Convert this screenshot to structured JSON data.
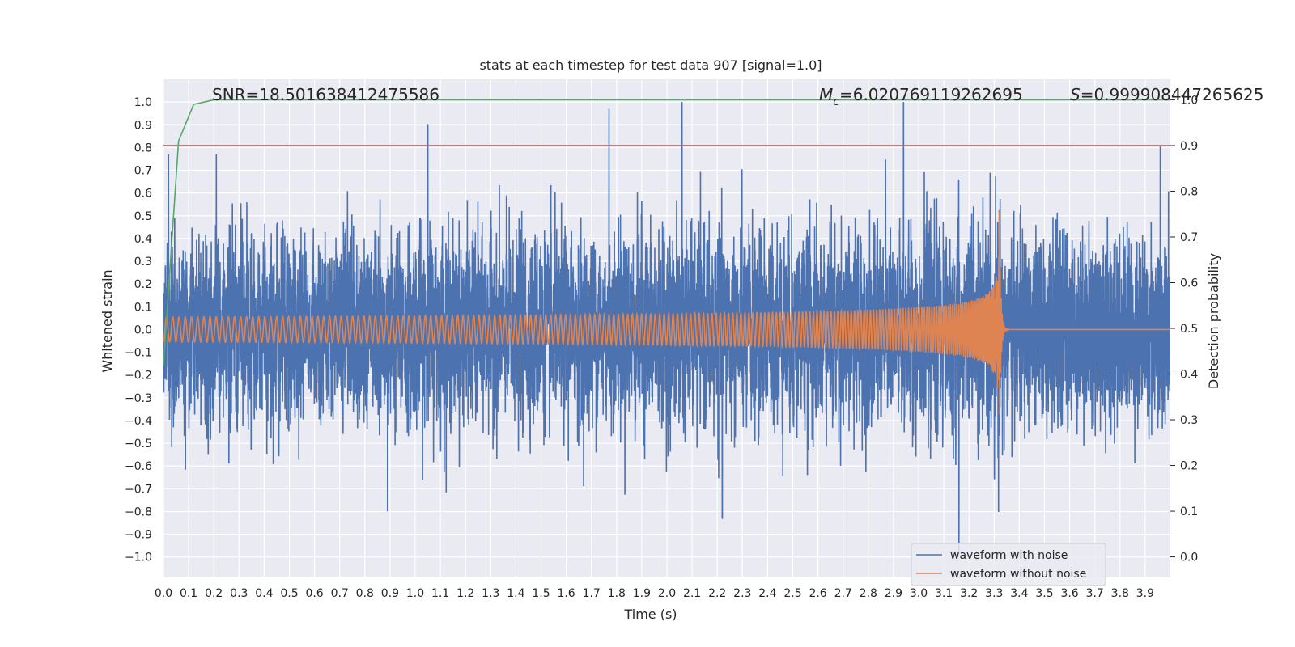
{
  "chart_data": {
    "type": "line",
    "title": "stats at each timestep for test data 907 [signal=1.0]",
    "xlabel": "Time (s)",
    "ylabel": "Whitened strain",
    "y2label": "Detection probability",
    "xlim": [
      0.0,
      4.0
    ],
    "ylim": [
      -1.09,
      1.1
    ],
    "y2lim": [
      -0.045,
      1.045
    ],
    "grid": true,
    "x_ticks": [
      0.0,
      0.1,
      0.2,
      0.3,
      0.4,
      0.5,
      0.6,
      0.7,
      0.8,
      0.9,
      1.0,
      1.1,
      1.2,
      1.3,
      1.4,
      1.5,
      1.6,
      1.7,
      1.8,
      1.9,
      2.0,
      2.1,
      2.2,
      2.3,
      2.4,
      2.5,
      2.6,
      2.7,
      2.8,
      2.9,
      3.0,
      3.1,
      3.2,
      3.3,
      3.4,
      3.5,
      3.6,
      3.7,
      3.8,
      3.9
    ],
    "x_tick_labels": [
      "0.0",
      "0.1",
      "0.2",
      "0.3",
      "0.4",
      "0.5",
      "0.6",
      "0.7",
      "0.8",
      "0.9",
      "1.0",
      "1.1",
      "1.2",
      "1.3",
      "1.4",
      "1.5",
      "1.6",
      "1.7",
      "1.8",
      "1.9",
      "2.0",
      "2.1",
      "2.2",
      "2.3",
      "2.4",
      "2.5",
      "2.6",
      "2.7",
      "2.8",
      "2.9",
      "3.0",
      "3.1",
      "3.2",
      "3.3",
      "3.4",
      "3.5",
      "3.6",
      "3.7",
      "3.8",
      "3.9"
    ],
    "y_ticks": [
      1.0,
      0.9,
      0.8,
      0.7,
      0.6,
      0.5,
      0.4,
      0.3,
      0.2,
      0.1,
      0.0,
      -0.1,
      -0.2,
      -0.3,
      -0.4,
      -0.5,
      -0.6,
      -0.7,
      -0.8,
      -0.9,
      -1.0
    ],
    "y_tick_labels": [
      "1.0",
      "0.9",
      "0.8",
      "0.7",
      "0.6",
      "0.5",
      "0.4",
      "0.3",
      "0.2",
      "0.1",
      "0.0",
      "−0.1",
      "−0.2",
      "−0.3",
      "−0.4",
      "−0.5",
      "−0.6",
      "−0.7",
      "−0.8",
      "−0.9",
      "−1.0"
    ],
    "y2_ticks": [
      1.0,
      0.9,
      0.8,
      0.7,
      0.6,
      0.5,
      0.4,
      0.3,
      0.2,
      0.1,
      0.0
    ],
    "y2_tick_labels": [
      "1.0",
      "0.9",
      "0.8",
      "0.7",
      "0.6",
      "0.5",
      "0.4",
      "0.3",
      "0.2",
      "0.1",
      "0.0"
    ],
    "annotations": {
      "snr": "SNR=18.501638412475586",
      "mc_symbol": "M",
      "mc_sub": "c",
      "mc_value": "=6.020769119262695",
      "s_symbol": "S",
      "s_value": "=0.999908447265625"
    },
    "threshold": {
      "axis": "right",
      "value": 0.9,
      "color": "#c44e52"
    },
    "series": [
      {
        "name": "waveform with noise",
        "color": "#4c72b0",
        "axis": "left",
        "sample_rate": 2048,
        "noise_std": 0.2,
        "notable_peaks": [
          {
            "t": 0.02,
            "y": 0.77
          },
          {
            "t": 0.21,
            "y": 0.77
          },
          {
            "t": 1.05,
            "y": 0.9
          },
          {
            "t": 1.77,
            "y": 0.97
          },
          {
            "t": 2.06,
            "y": 1.0
          },
          {
            "t": 2.94,
            "y": 1.0
          },
          {
            "t": 3.16,
            "y": -0.98
          },
          {
            "t": 3.96,
            "y": 0.81
          },
          {
            "t": 2.22,
            "y": -0.83
          },
          {
            "t": 0.89,
            "y": -0.8
          }
        ]
      },
      {
        "name": "waveform without noise",
        "color": "#dd8452",
        "axis": "left",
        "model": "chirp",
        "start_frequency_hz": 40,
        "merger_time_s": 3.32,
        "start_amplitude": 0.055,
        "peak_amplitude": 0.52,
        "ringdown_end_s": 3.36
      },
      {
        "name": "detection probability",
        "color": "#55a868",
        "axis": "right",
        "x": [
          0.0,
          0.06,
          0.12,
          0.2,
          0.4,
          4.0
        ],
        "values": [
          0.42,
          0.91,
          0.99,
          1.0,
          1.0,
          1.0
        ]
      }
    ],
    "legend": {
      "position": "lower-right",
      "entries": [
        {
          "label": "waveform with noise",
          "color": "#4c72b0"
        },
        {
          "label": "waveform without noise",
          "color": "#dd8452"
        }
      ]
    }
  }
}
